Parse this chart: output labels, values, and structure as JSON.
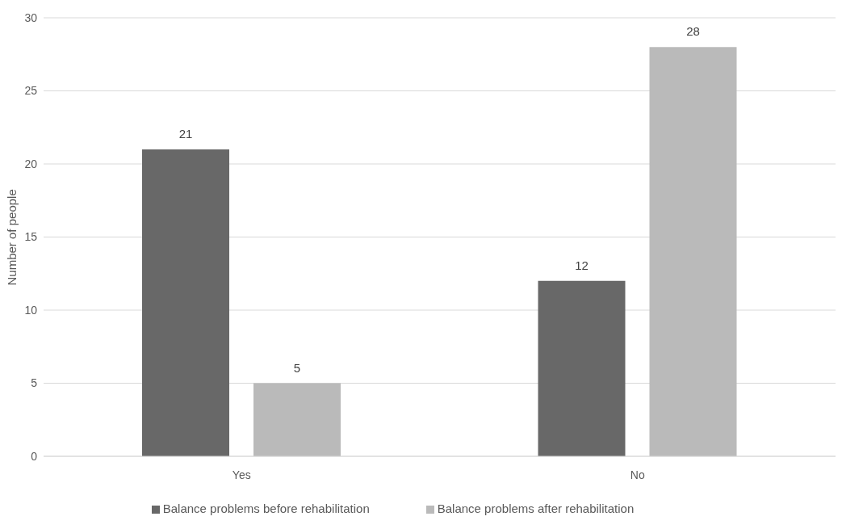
{
  "chart_data": {
    "type": "bar",
    "ylabel": "Number of people",
    "categories": [
      "Yes",
      "No"
    ],
    "series": [
      {
        "name": "Balance problems before rehabilitation",
        "color": "#686868",
        "values": [
          21,
          12
        ]
      },
      {
        "name": "Balance problems after rehabilitation",
        "color": "#bababa",
        "values": [
          5,
          28
        ]
      }
    ],
    "ylim": [
      0,
      30
    ],
    "yticks": [
      0,
      5,
      10,
      15,
      20,
      25,
      30
    ],
    "grid": "y",
    "legend": "bottom",
    "data_labels": true
  }
}
